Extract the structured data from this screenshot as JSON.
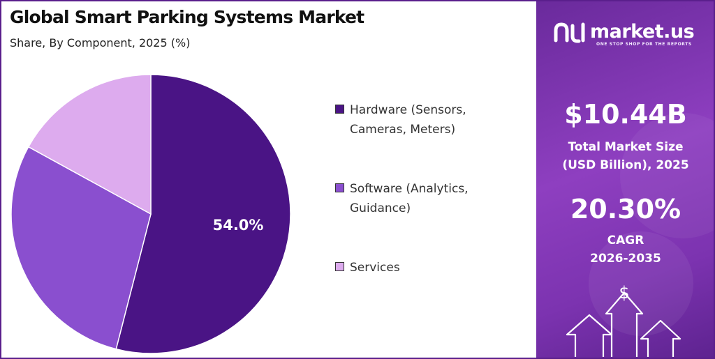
{
  "title": "Global Smart Parking Systems Market",
  "subtitle": "Share, By Component, 2025 (%)",
  "chart_data": {
    "type": "pie",
    "title": "Global Smart Parking Systems Market",
    "subtitle": "Share, By Component, 2025 (%)",
    "legend_position": "right",
    "start_angle_deg": 0,
    "direction": "clockwise",
    "slices": [
      {
        "label": "Hardware (Sensors, Cameras, Meters)",
        "value": 54.0,
        "color": "#4a1485",
        "data_label": "54.0%"
      },
      {
        "label": "Software (Analytics, Guidance)",
        "value": 29.0,
        "color": "#8a4fcf",
        "data_label": ""
      },
      {
        "label": "Services",
        "value": 17.0,
        "color": "#ddabee",
        "data_label": ""
      }
    ]
  },
  "legend": [
    {
      "line1": "Hardware (Sensors,",
      "line2": "Cameras, Meters)",
      "color": "#4a1485"
    },
    {
      "line1": "Software (Analytics,",
      "line2": "Guidance)",
      "color": "#8a4fcf"
    },
    {
      "line1": "Services",
      "line2": "",
      "color": "#ddabee"
    }
  ],
  "brand": {
    "name": "market.us",
    "tagline": "ONE STOP SHOP FOR THE REPORTS"
  },
  "stats": {
    "market_size_value": "$10.44B",
    "market_size_label_line1": "Total Market Size",
    "market_size_label_line2": "(USD Billion), 2025",
    "cagr_value": "20.30%",
    "cagr_label_line1": "CAGR",
    "cagr_label_line2": "2026-2035"
  },
  "icons": {
    "dollar_sign": "$"
  }
}
